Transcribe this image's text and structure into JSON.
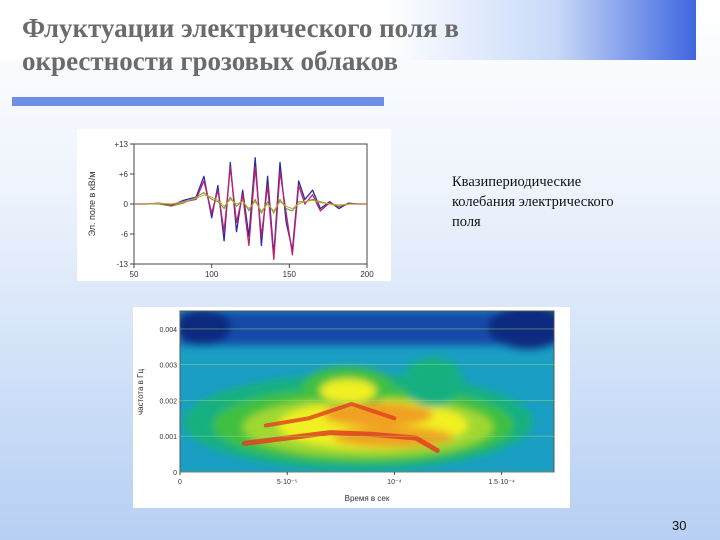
{
  "slide": {
    "title_line1": "Флуктуации электрического поля в",
    "title_line2": "окрестности грозовых облаков",
    "caption_lines": [
      "Квазипериодические",
      "колебания электрического",
      "поля"
    ],
    "page_number": "30"
  },
  "chart_data": [
    {
      "type": "line",
      "ylabel": "Эл. поле в кВ/м",
      "xlim": [
        50,
        200
      ],
      "ylim": [
        -13,
        13
      ],
      "x_ticks": [
        "50",
        "100",
        "150",
        "200"
      ],
      "y_ticks": [
        "+13",
        "+6",
        "0",
        "-6",
        "-13"
      ],
      "x": [
        50,
        58,
        66,
        74,
        82,
        90,
        95,
        100,
        104,
        108,
        112,
        116,
        120,
        124,
        128,
        132,
        136,
        140,
        144,
        148,
        152,
        156,
        160,
        165,
        170,
        176,
        182,
        188,
        194,
        200
      ],
      "series": [
        {
          "color": "#2a2aa8",
          "values": [
            0,
            0,
            0.2,
            -0.3,
            0.8,
            1.5,
            6,
            -3,
            4,
            -8,
            9,
            -6,
            3,
            -7,
            10,
            -9,
            6,
            -11,
            9,
            -4,
            -10,
            5,
            1,
            3,
            -1,
            0.5,
            -1,
            0.2,
            0,
            0
          ]
        },
        {
          "color": "#c0206a",
          "values": [
            0,
            0,
            0.1,
            -0.2,
            0.5,
            1,
            5,
            -2,
            3,
            -6,
            8,
            -4,
            2,
            -9,
            8,
            -7,
            4,
            -12,
            7,
            -2,
            -11,
            4,
            0,
            2,
            -1.5,
            0.3,
            -0.6,
            0,
            0,
            0
          ]
        },
        {
          "color": "#6a9a20",
          "values": [
            0,
            0,
            0,
            -0.5,
            0.2,
            1.5,
            2.5,
            1,
            0.5,
            -1,
            1.5,
            -0.5,
            0.8,
            -1.5,
            1,
            -2,
            0.5,
            -2,
            1,
            -1,
            -1.5,
            0.5,
            0.5,
            1,
            0.5,
            0,
            -0.5,
            0,
            0,
            0
          ]
        },
        {
          "color": "#c8a040",
          "values": [
            0,
            0,
            0.2,
            0,
            0.5,
            1.2,
            2,
            1.5,
            0.8,
            -0.5,
            1,
            0,
            0.5,
            -1,
            0.5,
            -1.5,
            0,
            -1.5,
            0.5,
            -0.5,
            -1,
            0,
            0.5,
            0.8,
            0.3,
            0,
            -0.2,
            0,
            0,
            0
          ]
        }
      ]
    },
    {
      "type": "heatmap",
      "xlabel": "Время в сек",
      "ylabel": "частота в Гц",
      "xlim": [
        0,
        0.00015
      ],
      "ylim": [
        0,
        0.0045
      ],
      "x_ticks": [
        "0",
        "5·10⁻⁵",
        "10⁻⁴",
        "1.5·10⁻⁴"
      ],
      "y_ticks": [
        "0.004",
        "0.003",
        "0.002",
        "0.001",
        "0"
      ],
      "ridges": [
        {
          "name": "lower",
          "x": [
            3e-05,
            5e-05,
            7e-05,
            9e-05,
            0.00011,
            0.00012
          ],
          "y": [
            0.0008,
            0.00095,
            0.0011,
            0.00105,
            0.00095,
            0.0006
          ]
        },
        {
          "name": "upper",
          "x": [
            4e-05,
            6e-05,
            8e-05,
            0.0001
          ],
          "y": [
            0.0013,
            0.0015,
            0.0019,
            0.0015
          ]
        }
      ],
      "colors": [
        "#0a2a80",
        "#1060c0",
        "#10a0c0",
        "#18b080",
        "#40c040",
        "#a0d830",
        "#f0f020",
        "#f0a020",
        "#e04020"
      ]
    }
  ]
}
